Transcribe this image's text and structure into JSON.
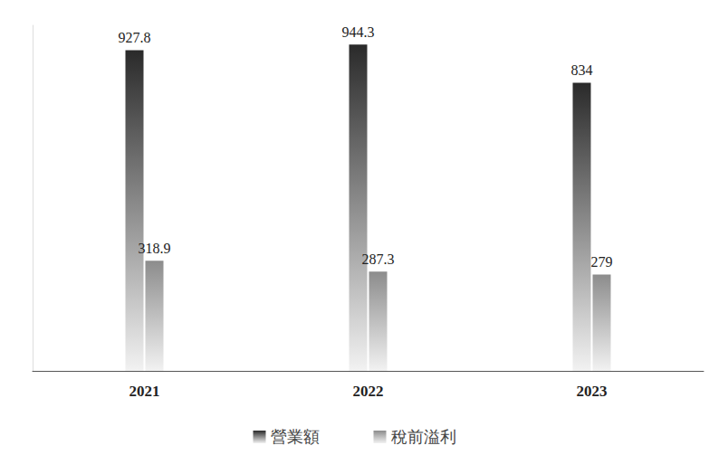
{
  "chart_data": {
    "type": "bar",
    "categories": [
      "2021",
      "2022",
      "2023"
    ],
    "series": [
      {
        "name": "營業額",
        "color": "#2a2a2a",
        "values": [
          927.8,
          944.3,
          834.0
        ]
      },
      {
        "name": "稅前溢利",
        "color": "#8c8c8c",
        "values": [
          318.9,
          287.3,
          279.0
        ]
      }
    ],
    "ylim": [
      0,
      1000
    ],
    "data_labels": true,
    "tick_labels": "x",
    "legend": "bottom",
    "grid": false
  }
}
